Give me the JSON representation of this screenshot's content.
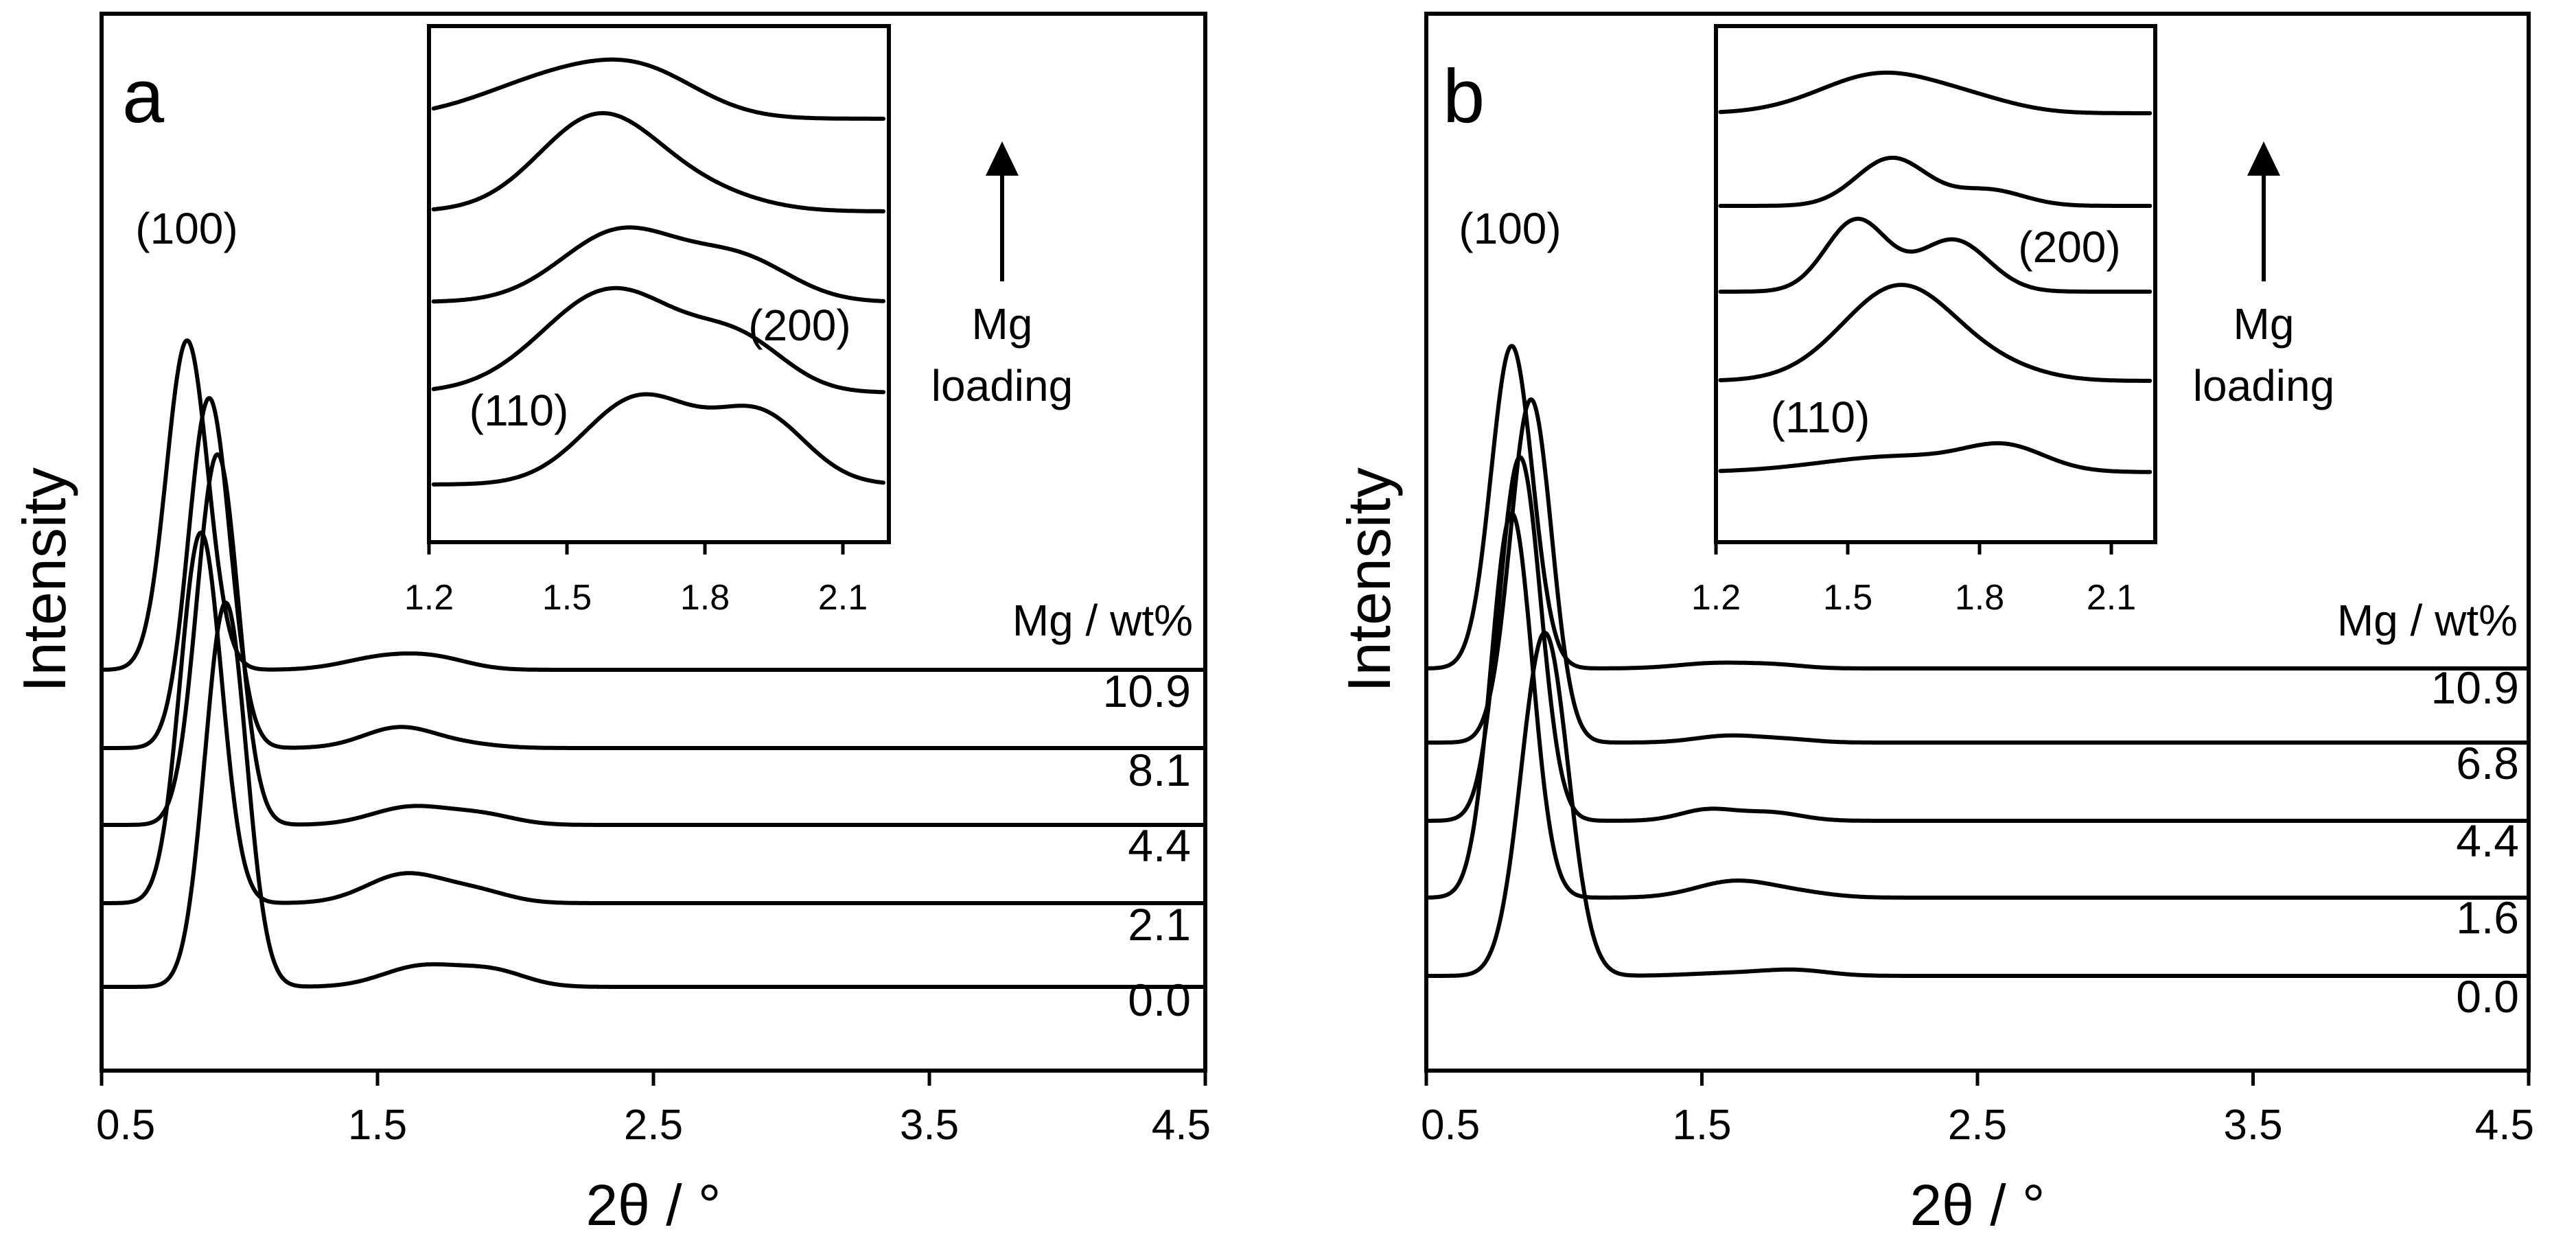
{
  "chart_data": [
    {
      "type": "line",
      "panel_label": "a",
      "xlabel": "2θ / °",
      "ylabel": "Intensity",
      "xlim": [
        0.5,
        4.5
      ],
      "xticks": [
        "0.5",
        "1.5",
        "2.5",
        "3.5",
        "4.5"
      ],
      "legend_title": "Mg / wt%",
      "peak_labels": {
        "p100": "(100)",
        "p110": "(110)",
        "p200": "(200)"
      },
      "arrow_label": [
        "Mg",
        "loading"
      ],
      "series": [
        {
          "name": "0.0",
          "peak100": {
            "x": 0.95,
            "height": 5.6,
            "width": 0.075
          },
          "peak110": {
            "x": 1.66,
            "height": 0.3,
            "width": 0.14
          },
          "peak200": {
            "x": 1.92,
            "height": 0.22,
            "width": 0.12
          }
        },
        {
          "name": "2.1",
          "peak100": {
            "x": 0.86,
            "height": 5.4,
            "width": 0.075
          },
          "peak110": {
            "x": 1.6,
            "height": 0.42,
            "width": 0.14
          },
          "peak200": {
            "x": 1.86,
            "height": 0.16,
            "width": 0.12
          }
        },
        {
          "name": "4.4",
          "peak100": {
            "x": 0.92,
            "height": 5.4,
            "width": 0.075
          },
          "peak110": {
            "x": 1.62,
            "height": 0.26,
            "width": 0.14
          },
          "peak200": {
            "x": 1.88,
            "height": 0.14,
            "width": 0.12
          }
        },
        {
          "name": "8.1",
          "peak100": {
            "x": 0.89,
            "height": 5.1,
            "width": 0.075
          },
          "peak110": {
            "x": 1.58,
            "height": 0.3,
            "width": 0.13
          },
          "peak200": {
            "x": 1.82,
            "height": 0.05,
            "width": 0.12
          }
        },
        {
          "name": "10.9",
          "peak100": {
            "x": 0.81,
            "height": 4.8,
            "width": 0.075
          },
          "peak110": {
            "x": 1.52,
            "height": 0.18,
            "width": 0.14
          },
          "peak200": {
            "x": 1.72,
            "height": 0.14,
            "width": 0.12
          }
        }
      ],
      "inset": {
        "xlim": [
          1.2,
          2.2
        ],
        "xticks": [
          "1.2",
          "1.5",
          "1.8",
          "2.1"
        ],
        "series": [
          {
            "name": "0.0",
            "peak110": {
              "x": 1.66,
              "height": 2.2,
              "width": 0.12
            },
            "peak200": {
              "x": 1.92,
              "height": 1.7,
              "width": 0.1
            }
          },
          {
            "name": "2.1",
            "peak110": {
              "x": 1.6,
              "height": 2.6,
              "width": 0.15
            },
            "peak200": {
              "x": 1.88,
              "height": 1.1,
              "width": 0.1
            }
          },
          {
            "name": "4.4",
            "peak110": {
              "x": 1.62,
              "height": 1.8,
              "width": 0.13
            },
            "peak200": {
              "x": 1.88,
              "height": 1.0,
              "width": 0.11
            }
          },
          {
            "name": "8.1",
            "peak110": {
              "x": 1.57,
              "height": 2.4,
              "width": 0.13
            },
            "peak200": {
              "x": 1.8,
              "height": 0.4,
              "width": 0.12
            }
          },
          {
            "name": "10.9",
            "peak110": {
              "x": 1.5,
              "height": 1.1,
              "width": 0.17
            },
            "peak200": {
              "x": 1.68,
              "height": 0.7,
              "width": 0.12
            }
          }
        ]
      }
    },
    {
      "type": "line",
      "panel_label": "b",
      "xlabel": "2θ / °",
      "ylabel": "Intensity",
      "xlim": [
        0.5,
        4.5
      ],
      "xticks": [
        "0.5",
        "1.5",
        "2.5",
        "3.5",
        "4.5"
      ],
      "legend_title": "Mg / wt%",
      "peak_labels": {
        "p100": "(100)",
        "p110": "(110)",
        "p200": "(200)"
      },
      "arrow_label": [
        "Mg",
        "loading"
      ],
      "series": [
        {
          "name": "0.0",
          "peak100": {
            "x": 0.93,
            "height": 5.0,
            "width": 0.085
          },
          "peak110": {
            "x": 1.6,
            "height": 0.04,
            "width": 0.15
          },
          "peak200": {
            "x": 1.84,
            "height": 0.08,
            "width": 0.12
          }
        },
        {
          "name": "1.6",
          "peak100": {
            "x": 0.81,
            "height": 5.6,
            "width": 0.075
          },
          "peak110": {
            "x": 1.62,
            "height": 0.24,
            "width": 0.14
          },
          "peak200": {
            "x": 1.86,
            "height": 0.06,
            "width": 0.12
          }
        },
        {
          "name": "4.4",
          "peak100": {
            "x": 0.84,
            "height": 5.3,
            "width": 0.075
          },
          "peak110": {
            "x": 1.52,
            "height": 0.16,
            "width": 0.1
          },
          "peak200": {
            "x": 1.75,
            "height": 0.12,
            "width": 0.11
          }
        },
        {
          "name": "6.8",
          "peak100": {
            "x": 0.88,
            "height": 5.0,
            "width": 0.075
          },
          "peak110": {
            "x": 1.6,
            "height": 0.1,
            "width": 0.12
          },
          "peak200": {
            "x": 1.82,
            "height": 0.04,
            "width": 0.1
          }
        },
        {
          "name": "10.9",
          "peak100": {
            "x": 0.81,
            "height": 4.7,
            "width": 0.075
          },
          "peak110": {
            "x": 1.56,
            "height": 0.08,
            "width": 0.14
          },
          "peak200": {
            "x": 1.78,
            "height": 0.04,
            "width": 0.1
          }
        }
      ],
      "inset": {
        "xlim": [
          1.2,
          2.2
        ],
        "xticks": [
          "1.2",
          "1.5",
          "1.8",
          "2.1"
        ],
        "series": [
          {
            "name": "0.0",
            "peak110": {
              "x": 1.62,
              "height": 0.4,
              "width": 0.18
            },
            "peak200": {
              "x": 1.86,
              "height": 0.55,
              "width": 0.09
            }
          },
          {
            "name": "1.6",
            "peak110": {
              "x": 1.62,
              "height": 2.4,
              "width": 0.13
            },
            "peak200": {
              "x": 1.86,
              "height": 0.2,
              "width": 0.1
            }
          },
          {
            "name": "4.4",
            "peak110": {
              "x": 1.52,
              "height": 1.8,
              "width": 0.07
            },
            "peak200": {
              "x": 1.74,
              "height": 1.3,
              "width": 0.08
            }
          },
          {
            "name": "6.8",
            "peak110": {
              "x": 1.6,
              "height": 1.2,
              "width": 0.08
            },
            "peak200": {
              "x": 1.82,
              "height": 0.4,
              "width": 0.08
            }
          },
          {
            "name": "10.9",
            "peak110": {
              "x": 1.58,
              "height": 1.0,
              "width": 0.14
            },
            "peak200": {
              "x": 1.8,
              "height": 0.2,
              "width": 0.1
            }
          }
        ]
      }
    }
  ]
}
